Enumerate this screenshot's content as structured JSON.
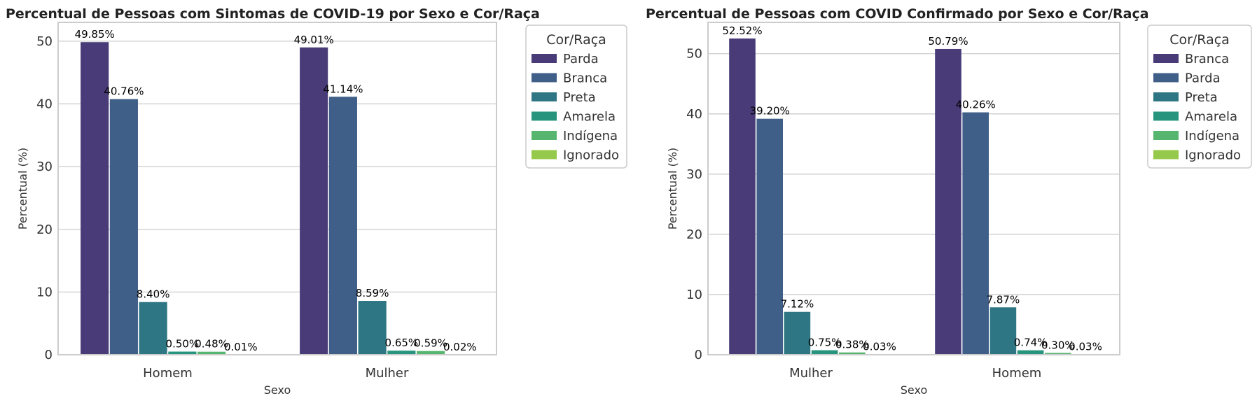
{
  "chart_data": [
    {
      "type": "bar",
      "title": "Percentual de Pessoas com Sintomas de COVID-19 por Sexo e Cor/Raça",
      "xlabel": "Sexo",
      "ylabel": "Percentual (%)",
      "categories": [
        "Homem",
        "Mulher"
      ],
      "ylim": [
        0,
        53
      ],
      "yticks": [
        0,
        10,
        20,
        30,
        40,
        50
      ],
      "grid": "horizontal",
      "legend_title": "Cor/Raça",
      "legend_position": "outside-right-top",
      "series": [
        {
          "name": "Parda",
          "color": "#483b78",
          "values": [
            49.85,
            49.01
          ],
          "labels": [
            "49.85%",
            "49.01%"
          ]
        },
        {
          "name": "Branca",
          "color": "#3f5e88",
          "values": [
            40.76,
            41.14
          ],
          "labels": [
            "40.76%",
            "41.14%"
          ]
        },
        {
          "name": "Preta",
          "color": "#2e7683",
          "values": [
            8.4,
            8.59
          ],
          "labels": [
            "8.40%",
            "8.59%"
          ]
        },
        {
          "name": "Amarela",
          "color": "#27957d",
          "values": [
            0.5,
            0.65
          ],
          "labels": [
            "0.50%",
            "0.65%"
          ]
        },
        {
          "name": "Indígena",
          "color": "#56b66f",
          "values": [
            0.48,
            0.59
          ],
          "labels": [
            "0.48%",
            "0.59%"
          ]
        },
        {
          "name": "Ignorado",
          "color": "#95c94b",
          "values": [
            0.01,
            0.02
          ],
          "labels": [
            "0.01%",
            "0.02%"
          ]
        }
      ]
    },
    {
      "type": "bar",
      "title": "Percentual de Pessoas com COVID Confirmado por Sexo e Cor/Raça",
      "xlabel": "Sexo",
      "ylabel": "Percentual (%)",
      "categories": [
        "Mulher",
        "Homem"
      ],
      "ylim": [
        0,
        55.2
      ],
      "yticks": [
        0,
        10,
        20,
        30,
        40,
        50
      ],
      "grid": "horizontal",
      "legend_title": "Cor/Raça",
      "legend_position": "outside-right-top",
      "series": [
        {
          "name": "Branca",
          "color": "#483b78",
          "values": [
            52.52,
            50.79
          ],
          "labels": [
            "52.52%",
            "50.79%"
          ]
        },
        {
          "name": "Parda",
          "color": "#3f5e88",
          "values": [
            39.2,
            40.26
          ],
          "labels": [
            "39.20%",
            "40.26%"
          ]
        },
        {
          "name": "Preta",
          "color": "#2e7683",
          "values": [
            7.12,
            7.87
          ],
          "labels": [
            "7.12%",
            "7.87%"
          ]
        },
        {
          "name": "Amarela",
          "color": "#27957d",
          "values": [
            0.75,
            0.74
          ],
          "labels": [
            "0.75%",
            "0.74%"
          ]
        },
        {
          "name": "Indígena",
          "color": "#56b66f",
          "values": [
            0.38,
            0.3
          ],
          "labels": [
            "0.38%",
            "0.30%"
          ]
        },
        {
          "name": "Ignorado",
          "color": "#95c94b",
          "values": [
            0.03,
            0.03
          ],
          "labels": [
            "0.03%",
            "0.03%"
          ]
        }
      ]
    }
  ]
}
